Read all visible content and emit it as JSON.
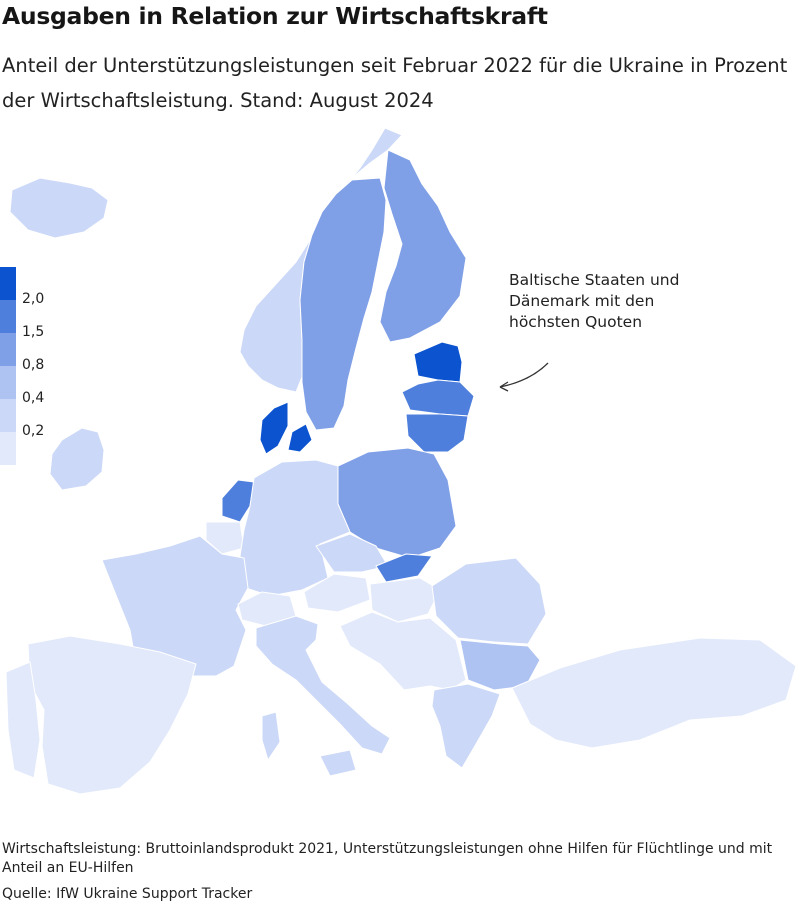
{
  "title": "Ausgaben in Relation zur Wirtschaftskraft",
  "subtitle": "Anteil der Unterstützungsleistungen seit Februar 2022 für die Ukraine in Prozent der Wirtschaftsleistung. Stand: August 2024",
  "legend": {
    "bins": [
      {
        "label": "2,0",
        "color": "#0b53cf"
      },
      {
        "label": "1,5",
        "color": "#4f7fdc"
      },
      {
        "label": "0,8",
        "color": "#7f9fe6"
      },
      {
        "label": "0,4",
        "color": "#aec3f2"
      },
      {
        "label": "0,2",
        "color": "#cbd8f7"
      },
      {
        "label": "",
        "color": "#e2e9fb"
      }
    ]
  },
  "annotation": "Baltische Staaten und Dänemark mit den höchsten Quoten",
  "footnote": "Wirtschaftsleistung: Bruttoinlandsprodukt 2021, Unterstützungsleistungen ohne Hilfen für Flüchtlinge und mit Anteil an EU-Hilfen",
  "source": "Quelle: IfW Ukraine Support Tracker",
  "colors": {
    "highest": "#0b53cf",
    "high": "#4f7fdc",
    "mid": "#7f9fe6",
    "low": "#aec3f2",
    "lower": "#cbd8f7",
    "lowest": "#e2e9fb",
    "border": "#ffffff"
  },
  "map_regions": [
    {
      "country": "Norwegen",
      "tier": "lower"
    },
    {
      "country": "Schweden",
      "tier": "mid"
    },
    {
      "country": "Finnland",
      "tier": "mid"
    },
    {
      "country": "Estland",
      "tier": "highest"
    },
    {
      "country": "Lettland",
      "tier": "high"
    },
    {
      "country": "Litauen",
      "tier": "high"
    },
    {
      "country": "Dänemark",
      "tier": "highest"
    },
    {
      "country": "Polen",
      "tier": "mid"
    },
    {
      "country": "Niederlande",
      "tier": "high"
    },
    {
      "country": "Deutschland",
      "tier": "lower"
    },
    {
      "country": "Frankreich",
      "tier": "lower"
    },
    {
      "country": "Spanien",
      "tier": "lowest"
    },
    {
      "country": "Portugal",
      "tier": "lowest"
    },
    {
      "country": "Italien",
      "tier": "lower"
    },
    {
      "country": "Schweiz",
      "tier": "lowest"
    },
    {
      "country": "Tschechien",
      "tier": "lower"
    },
    {
      "country": "Slowakei",
      "tier": "high"
    },
    {
      "country": "Ungarn",
      "tier": "lowest"
    },
    {
      "country": "Rumänien",
      "tier": "lower"
    },
    {
      "country": "Bulgarien",
      "tier": "low"
    },
    {
      "country": "Griechenland",
      "tier": "lower"
    },
    {
      "country": "Türkei",
      "tier": "lowest"
    },
    {
      "country": "Irland",
      "tier": "lower"
    },
    {
      "country": "Island",
      "tier": "lower"
    }
  ]
}
